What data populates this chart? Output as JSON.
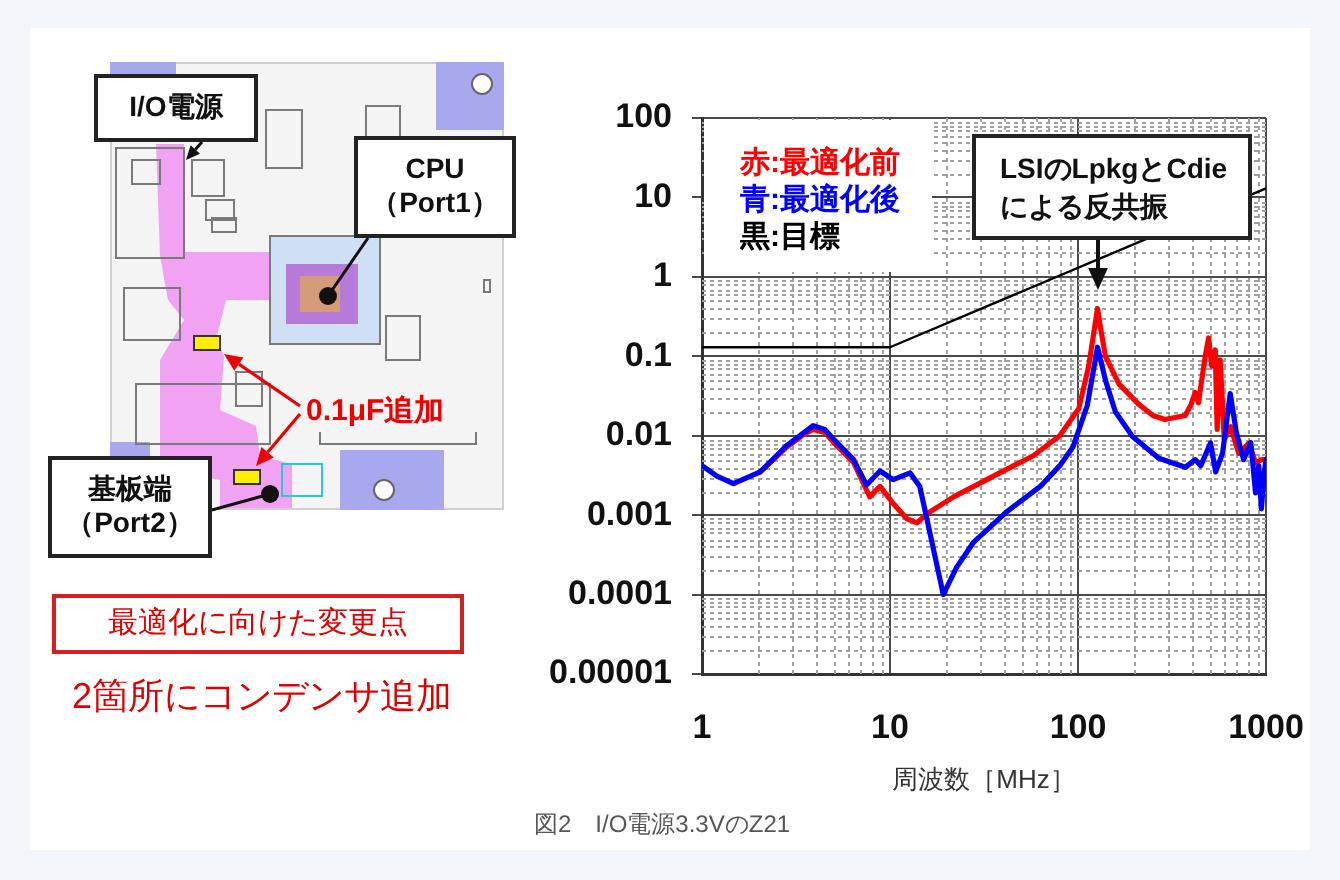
{
  "chart_data": {
    "type": "line",
    "xlabel": "周波数［MHz］",
    "annotations": [
      "I/O電源",
      "CPU（Port1）",
      "基板端（Port2）",
      "0.1μF追加",
      "最適化に向けた変更点",
      "2箇所にコンデンサ追加",
      "LSIのLpkgとCdieによる反共振",
      "図2　I/O電源3.3VのZ21"
    ],
    "series": [
      {
        "name": "赤:最適化前",
        "color": "#ff0000",
        "x": [
          2.04,
          2.82,
          3.5,
          3.9,
          4.5,
          5.0,
          6.4,
          7.8,
          8.85,
          10.4,
          12.3,
          13.9,
          16.3,
          21.8,
          35.5,
          57.8,
          80,
          101,
          114,
          127,
          133,
          140,
          165,
          210,
          250,
          290,
          372,
          400,
          420,
          437,
          475,
          495,
          515,
          537,
          550,
          570,
          600,
          648,
          716,
          810,
          880,
          950,
          1000
        ],
        "values": [
          0.0035,
          0.0072,
          0.0105,
          0.012,
          0.011,
          0.0083,
          0.0046,
          0.0017,
          0.0023,
          0.0014,
          0.0009,
          0.0008,
          0.0011,
          0.0017,
          0.0031,
          0.0056,
          0.01,
          0.022,
          0.075,
          0.4,
          0.2,
          0.1,
          0.045,
          0.025,
          0.018,
          0.016,
          0.018,
          0.025,
          0.035,
          0.026,
          0.1,
          0.17,
          0.075,
          0.12,
          0.012,
          0.09,
          0.009,
          0.013,
          0.006,
          0.008,
          0.0046,
          0.005,
          0.005
        ]
      },
      {
        "name": "青:最適化後",
        "color": "#0000ff",
        "x": [
          1,
          1.2,
          1.47,
          2.04,
          2.82,
          3.5,
          3.9,
          4.5,
          5.0,
          6.4,
          7.5,
          8.85,
          10.4,
          12.8,
          14.4,
          16.3,
          19.2,
          22.6,
          27.7,
          41.7,
          63,
          80,
          94,
          112,
          127,
          140,
          158,
          195,
          269,
          372,
          420,
          450,
          507,
          540,
          588,
          645,
          695,
          760,
          830,
          880,
          915,
          945,
          980,
          1000
        ],
        "values": [
          0.0042,
          0.0031,
          0.0025,
          0.0035,
          0.0075,
          0.011,
          0.0134,
          0.012,
          0.0091,
          0.005,
          0.0024,
          0.0036,
          0.0028,
          0.0034,
          0.0023,
          0.0006,
          0.0001,
          0.00022,
          0.00045,
          0.0011,
          0.0023,
          0.0042,
          0.0072,
          0.024,
          0.13,
          0.05,
          0.02,
          0.0098,
          0.0052,
          0.004,
          0.005,
          0.0042,
          0.0081,
          0.0035,
          0.0061,
          0.034,
          0.011,
          0.005,
          0.0082,
          0.0019,
          0.0042,
          0.0012,
          0.0035,
          0.005
        ]
      },
      {
        "name": "黒:目標",
        "color": "#000000",
        "x": [
          1,
          10,
          1000
        ],
        "values": [
          0.13,
          0.13,
          13
        ]
      }
    ],
    "xlim": [
      1,
      1000
    ],
    "ylim": [
      1e-05,
      100
    ],
    "xticks": [
      1,
      {
        "value": 2,
        "label": null
      },
      {
        "value": 3,
        "label": null
      },
      {
        "value": 4,
        "label": null
      },
      {
        "value": 5,
        "label": null
      },
      {
        "value": 6,
        "label": null
      },
      {
        "value": 7,
        "label": null
      },
      {
        "value": 8,
        "label": null
      },
      {
        "value": 9,
        "label": null
      },
      10,
      {
        "value": 20,
        "label": null
      },
      {
        "value": 30,
        "label": null
      },
      {
        "value": 40,
        "label": null
      },
      {
        "value": 50,
        "label": null
      },
      {
        "value": 60,
        "label": null
      },
      {
        "value": 70,
        "label": null
      },
      {
        "value": 80,
        "label": null
      },
      {
        "value": 90,
        "label": null
      },
      100,
      {
        "value": 200,
        "label": null
      },
      {
        "value": 300,
        "label": null
      },
      {
        "value": 400,
        "label": null
      },
      {
        "value": 500,
        "label": null
      },
      {
        "value": 600,
        "label": null
      },
      {
        "value": 700,
        "label": null
      },
      {
        "value": 800,
        "label": null
      },
      {
        "value": 900,
        "label": null
      },
      1000
    ],
    "yticks": [
      {
        "value": 1e-05,
        "label": "0.00001"
      },
      {
        "value": 2e-05,
        "label": null
      },
      {
        "value": 3e-05,
        "label": null
      },
      {
        "value": 4e-05,
        "label": null
      },
      {
        "value": 5e-05,
        "label": null
      },
      {
        "value": 6e-05,
        "label": null
      },
      {
        "value": 7e-05,
        "label": null
      },
      {
        "value": 8e-05,
        "label": null
      },
      {
        "value": 9e-05,
        "label": null
      },
      0.0001,
      {
        "value": 0.0002,
        "label": null
      },
      {
        "value": 0.0003,
        "label": null
      },
      {
        "value": 0.0004,
        "label": null
      },
      {
        "value": 0.0005,
        "label": null
      },
      {
        "value": 0.0006,
        "label": null
      },
      {
        "value": 0.0007,
        "label": null
      },
      {
        "value": 0.0008,
        "label": null
      },
      {
        "value": 0.0009,
        "label": null
      },
      0.001,
      {
        "value": 0.002,
        "label": null
      },
      {
        "value": 0.003,
        "label": null
      },
      {
        "value": 0.004,
        "label": null
      },
      {
        "value": 0.005,
        "label": null
      },
      {
        "value": 0.006,
        "label": null
      },
      {
        "value": 0.007,
        "label": null
      },
      {
        "value": 0.008,
        "label": null
      },
      {
        "value": 0.009,
        "label": null
      },
      0.01,
      {
        "value": 0.02,
        "label": null
      },
      {
        "value": 0.03,
        "label": null
      },
      {
        "value": 0.04,
        "label": null
      },
      {
        "value": 0.05,
        "label": null
      },
      {
        "value": 0.06,
        "label": null
      },
      {
        "value": 0.07,
        "label": null
      },
      {
        "value": 0.08,
        "label": null
      },
      {
        "value": 0.09,
        "label": null
      },
      0.1,
      {
        "value": 0.2,
        "label": null
      },
      {
        "value": 0.3,
        "label": null
      },
      {
        "value": 0.4,
        "label": null
      },
      {
        "value": 0.5,
        "label": null
      },
      {
        "value": 0.6,
        "label": null
      },
      {
        "value": 0.7,
        "label": null
      },
      {
        "value": 0.8,
        "label": null
      },
      {
        "value": 0.9,
        "label": null
      },
      1,
      {
        "value": 2,
        "label": null
      },
      {
        "value": 3,
        "label": null
      },
      {
        "value": 4,
        "label": null
      },
      {
        "value": 5,
        "label": null
      },
      {
        "value": 6,
        "label": null
      },
      {
        "value": 7,
        "label": null
      },
      {
        "value": 8,
        "label": null
      },
      {
        "value": 9,
        "label": null
      },
      10,
      {
        "value": 20,
        "label": null
      },
      {
        "value": 30,
        "label": null
      },
      {
        "value": 40,
        "label": null
      },
      {
        "value": 50,
        "label": null
      },
      {
        "value": 60,
        "label": null
      },
      {
        "value": 70,
        "label": null
      },
      {
        "value": 80,
        "label": null
      },
      {
        "value": 90,
        "label": null
      },
      100
    ],
    "log": "xy",
    "grid": true,
    "legend": "top left"
  }
}
